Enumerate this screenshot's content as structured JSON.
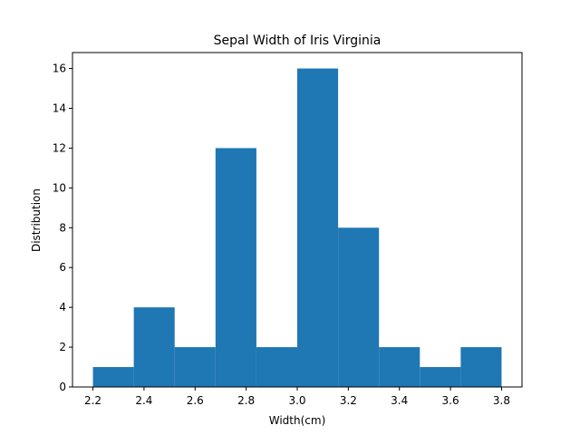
{
  "chart_data": {
    "type": "bar",
    "title": "Sepal Width of Iris Virginia",
    "xlabel": "Width(cm)",
    "ylabel": "Distribution",
    "bin_edges": [
      2.2,
      2.36,
      2.52,
      2.68,
      2.84,
      3.0,
      3.16,
      3.32,
      3.48,
      3.64,
      3.8
    ],
    "values": [
      1,
      4,
      2,
      12,
      2,
      16,
      8,
      2,
      1,
      2
    ],
    "xlim": [
      2.12,
      3.88
    ],
    "ylim": [
      0,
      16.8
    ],
    "xticks": [
      "2.2",
      "2.4",
      "2.6",
      "2.8",
      "3.0",
      "3.2",
      "3.4",
      "3.6",
      "3.8"
    ],
    "yticks": [
      "0",
      "2",
      "4",
      "6",
      "8",
      "10",
      "12",
      "14",
      "16"
    ],
    "color": "#1f77b4",
    "grid": false,
    "legend": "none"
  }
}
